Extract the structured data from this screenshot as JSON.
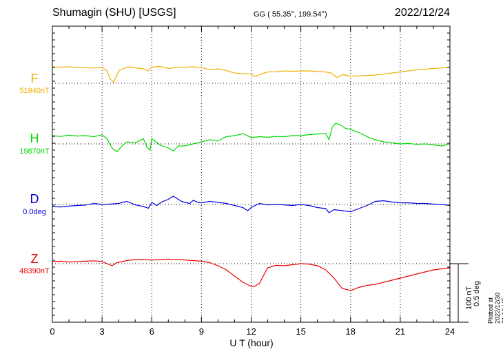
{
  "header": {
    "station": "Shumagin (SHU)  [USGS]",
    "coords": "GG ( 55.35°, 199.54°)",
    "date": "2022/12/24"
  },
  "chart_data": {
    "type": "line",
    "xlabel": "U T (hour)",
    "xlim": [
      0,
      24
    ],
    "xticks": [
      "0",
      "3",
      "6",
      "9",
      "12",
      "15",
      "18",
      "21",
      "24"
    ],
    "grid": true,
    "scale_bar": {
      "line1": "100 nT",
      "line2": "0.5 deg"
    },
    "plotted_note": "Plotted at 2022/12/30 21:13 UT",
    "series": [
      {
        "name": "F",
        "baseline_label": "51940nT",
        "color": "#f0b000",
        "x": [
          0,
          0.5,
          1,
          1.5,
          2,
          2.5,
          3,
          3.3,
          3.5,
          3.7,
          4,
          4.3,
          4.6,
          5,
          5.5,
          5.8,
          6,
          6.5,
          7,
          7.5,
          8,
          8.5,
          9,
          9.5,
          10,
          10.5,
          11,
          11.5,
          12,
          12.2,
          12.5,
          13,
          13.5,
          14,
          14.5,
          15,
          15.5,
          16,
          16.5,
          16.8,
          17,
          17.2,
          17.5,
          18,
          18.5,
          19,
          19.5,
          20,
          20.5,
          21,
          21.5,
          22,
          22.5,
          23,
          23.5,
          24
        ],
        "y": [
          80,
          78,
          80,
          75,
          76,
          74,
          77,
          60,
          20,
          5,
          60,
          72,
          80,
          75,
          70,
          60,
          78,
          82,
          72,
          76,
          78,
          80,
          76,
          66,
          70,
          62,
          50,
          46,
          46,
          32,
          42,
          55,
          56,
          60,
          58,
          60,
          60,
          57,
          55,
          50,
          40,
          28,
          42,
          35,
          36,
          38,
          40,
          44,
          50,
          55,
          60,
          66,
          68,
          72,
          74,
          78
        ]
      },
      {
        "name": "H",
        "baseline_label": "19870nT",
        "color": "#00d800",
        "x": [
          0,
          0.5,
          1,
          1.5,
          2,
          2.5,
          3,
          3.3,
          3.6,
          3.9,
          4.2,
          4.5,
          5,
          5.5,
          5.7,
          5.9,
          6,
          6.5,
          7,
          7.3,
          7.6,
          8,
          8.5,
          9,
          9.5,
          10,
          10.5,
          11,
          11.5,
          12,
          12.5,
          13,
          13.5,
          14,
          14.5,
          15,
          15.5,
          16,
          16.5,
          16.7,
          16.9,
          17.1,
          17.4,
          17.7,
          18,
          18.5,
          19,
          19.5,
          20,
          20.5,
          21,
          21.5,
          22,
          22.5,
          23,
          23.5,
          24
        ],
        "y": [
          40,
          36,
          42,
          38,
          40,
          35,
          44,
          25,
          -20,
          -38,
          -10,
          10,
          5,
          25,
          -15,
          -30,
          25,
          -5,
          -20,
          -35,
          -10,
          -10,
          0,
          10,
          20,
          14,
          35,
          40,
          50,
          30,
          35,
          32,
          36,
          35,
          40,
          40,
          45,
          48,
          50,
          20,
          80,
          100,
          92,
          75,
          70,
          55,
          35,
          20,
          10,
          5,
          0,
          2,
          -2,
          0,
          -5,
          -10,
          0
        ]
      },
      {
        "name": "D",
        "baseline_label": "0.0deg",
        "color": "#0000dd",
        "x": [
          0,
          0.5,
          1,
          1.5,
          2,
          2.5,
          3,
          3.5,
          4,
          4.5,
          5,
          5.5,
          5.8,
          6,
          6.3,
          6.6,
          7,
          7.3,
          7.5,
          7.8,
          8,
          8.3,
          8.5,
          8.8,
          9,
          9.5,
          10,
          10.5,
          11,
          11.5,
          11.8,
          12,
          12.5,
          13,
          13.5,
          14,
          14.5,
          15,
          15.5,
          16,
          16.5,
          16.7,
          17,
          17.5,
          18,
          18.5,
          19,
          19.5,
          20,
          20.5,
          21,
          21.5,
          22,
          22.5,
          23,
          23.5,
          24
        ],
        "y": [
          -10,
          -12,
          -8,
          -5,
          -3,
          5,
          0,
          2,
          5,
          15,
          -2,
          -10,
          -18,
          10,
          -5,
          12,
          25,
          40,
          30,
          15,
          10,
          5,
          20,
          10,
          8,
          15,
          10,
          5,
          -5,
          -15,
          -30,
          -15,
          5,
          -2,
          0,
          -2,
          -5,
          0,
          -5,
          -15,
          -20,
          -40,
          -25,
          -30,
          -35,
          -20,
          -5,
          15,
          18,
          12,
          8,
          8,
          5,
          5,
          2,
          0,
          -5
        ]
      },
      {
        "name": "Z",
        "baseline_label": "48390nT",
        "color": "#ee0000",
        "x": [
          0,
          0.5,
          1,
          1.5,
          2,
          2.5,
          3,
          3.3,
          3.6,
          3.9,
          4.2,
          4.5,
          5,
          5.5,
          6,
          6.5,
          7,
          7.5,
          8,
          8.5,
          9,
          9.5,
          10,
          10.5,
          11,
          11.5,
          12,
          12.2,
          12.5,
          13,
          13.5,
          14,
          14.5,
          15,
          15.5,
          16,
          16.5,
          17,
          17.5,
          18,
          18.5,
          19,
          19.5,
          20,
          20.5,
          21,
          21.5,
          22,
          22.5,
          23,
          23.5,
          24
        ],
        "y": [
          10,
          12,
          8,
          10,
          12,
          14,
          10,
          0,
          -10,
          5,
          10,
          15,
          20,
          20,
          18,
          20,
          22,
          20,
          18,
          15,
          12,
          5,
          -10,
          -30,
          -60,
          -90,
          -110,
          -110,
          -95,
          -20,
          -8,
          -10,
          -5,
          0,
          -2,
          -10,
          -30,
          -70,
          -120,
          -130,
          -115,
          -105,
          -100,
          -90,
          -80,
          -70,
          -60,
          -50,
          -40,
          -30,
          -25,
          -20
        ]
      }
    ]
  }
}
